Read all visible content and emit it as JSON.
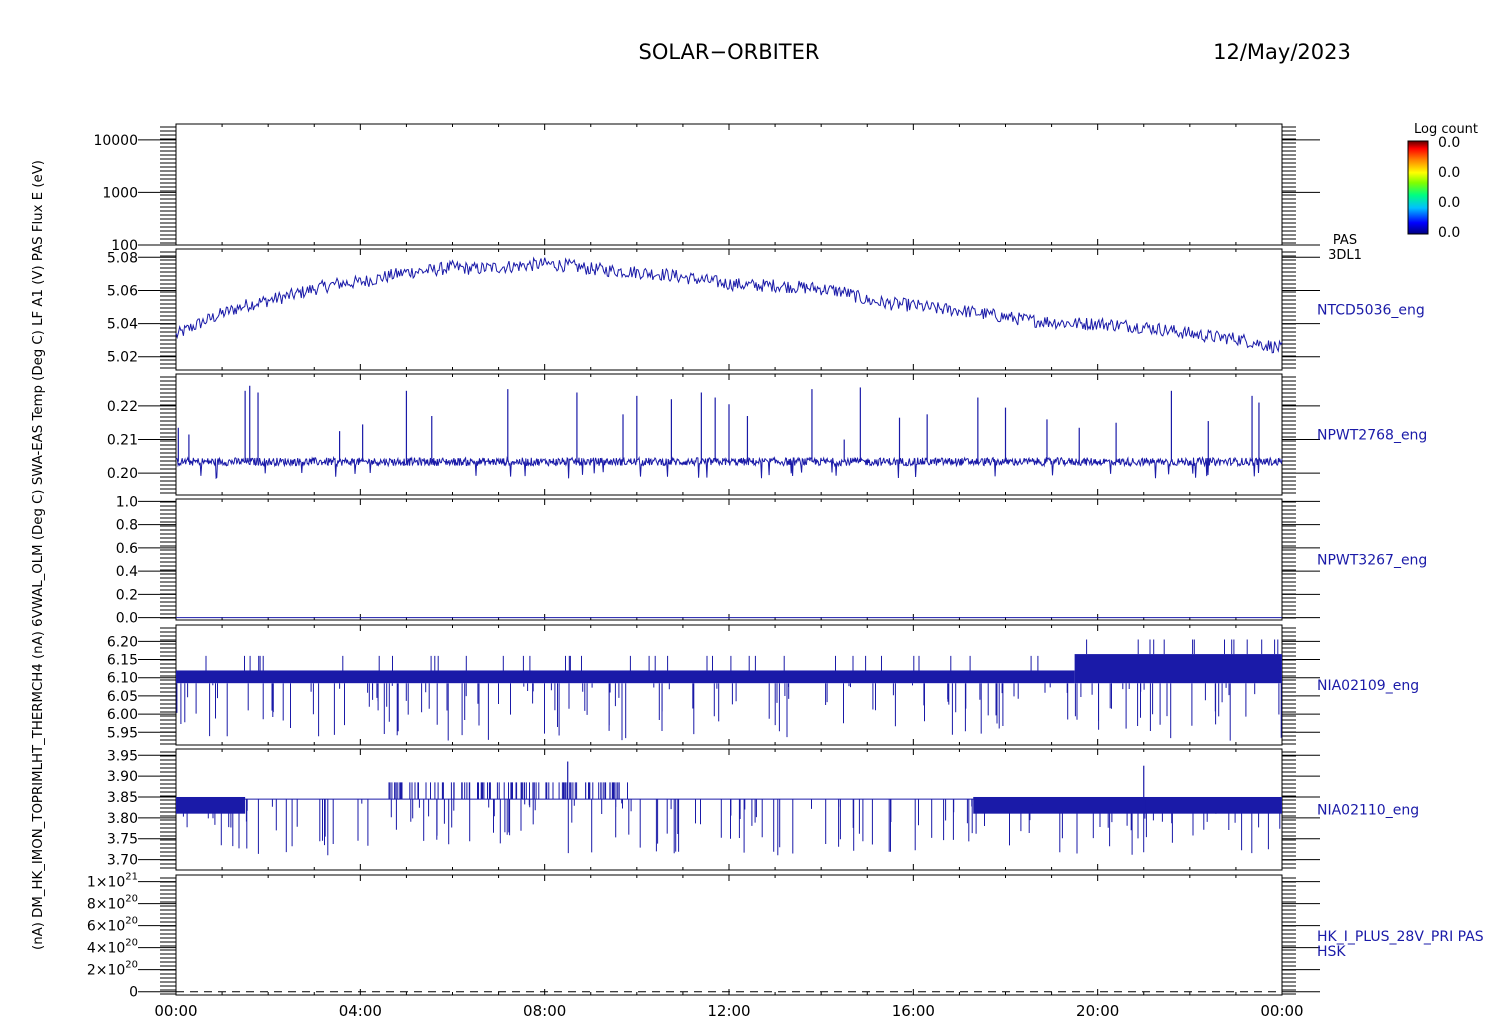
{
  "header": {
    "mission": "SOLAR−ORBITER",
    "date": "12/May/2023"
  },
  "colorbar": {
    "title": "Log count",
    "tick_labels": [
      "0.0",
      "0.0",
      "0.0",
      "0.0"
    ]
  },
  "left_axis_stacked_label": "(nA)  DM_HK_IMON_TOPRIMLHT_THERMCH4 (nA)  6VWAL_OLM (Deg C)  SWA-EAS Temp (Deg C)  LF A1 (V)  PAS Flux  E (eV)",
  "time_axis": {
    "tick_labels": [
      "00:00",
      "04:00",
      "08:00",
      "12:00",
      "16:00",
      "20:00",
      "00:00"
    ],
    "range_hours": [
      0,
      24
    ]
  },
  "colors": {
    "data": "#1a1aa8",
    "axes": "#000000",
    "colorbar_gradient": [
      "#000080",
      "#0000ff",
      "#00c0ff",
      "#00ff80",
      "#80ff00",
      "#ffff00",
      "#ff8000",
      "#ff0000",
      "#600000"
    ]
  },
  "chart_data": [
    {
      "type": "heatmap",
      "panel": "PAS 3DL1 energy spectrogram",
      "ylabel": "E (eV)",
      "yscale": "log",
      "ylim": [
        100,
        20000
      ],
      "ytick_labels": [
        "100",
        "1000",
        "10000"
      ],
      "right_labels": [
        "PAS",
        "3DL1"
      ],
      "values": []
    },
    {
      "type": "line",
      "series_name": "NTCD5036_eng",
      "ylim": [
        5.012,
        5.085
      ],
      "ytick_labels": [
        "5.02",
        "5.04",
        "5.06",
        "5.08"
      ],
      "x_hours": [
        0,
        0.5,
        1,
        1.5,
        2,
        2.5,
        3,
        3.5,
        4,
        4.5,
        5,
        5.5,
        6,
        6.5,
        7,
        7.5,
        8,
        8.5,
        9,
        9.5,
        10,
        10.5,
        11,
        11.5,
        12,
        12.5,
        13,
        13.5,
        14,
        14.5,
        15,
        15.5,
        16,
        16.5,
        17,
        17.5,
        18,
        18.5,
        19,
        19.5,
        20,
        20.5,
        21,
        21.5,
        22,
        22.5,
        23,
        23.5,
        24
      ],
      "y": [
        5.033,
        5.04,
        5.046,
        5.051,
        5.054,
        5.057,
        5.061,
        5.064,
        5.065,
        5.068,
        5.071,
        5.072,
        5.074,
        5.073,
        5.074,
        5.075,
        5.076,
        5.075,
        5.073,
        5.072,
        5.071,
        5.07,
        5.068,
        5.066,
        5.064,
        5.063,
        5.063,
        5.062,
        5.061,
        5.059,
        5.054,
        5.052,
        5.051,
        5.049,
        5.048,
        5.046,
        5.044,
        5.042,
        5.041,
        5.04,
        5.04,
        5.039,
        5.038,
        5.036,
        5.034,
        5.032,
        5.031,
        5.028,
        5.025
      ],
      "noise_amplitude": 0.004
    },
    {
      "type": "line",
      "series_name": "NPWT2768_eng",
      "ylim": [
        0.1935,
        0.2295
      ],
      "ytick_labels": [
        "0.20",
        "0.21",
        "0.22"
      ],
      "baseline": 0.2034,
      "noise_amplitude": 0.0012,
      "spikes": [
        {
          "t": 0.05,
          "v": 0.2135
        },
        {
          "t": 0.28,
          "v": 0.2115
        },
        {
          "t": 1.5,
          "v": 0.2245
        },
        {
          "t": 1.6,
          "v": 0.226
        },
        {
          "t": 1.78,
          "v": 0.224
        },
        {
          "t": 3.55,
          "v": 0.2125
        },
        {
          "t": 4.05,
          "v": 0.2145
        },
        {
          "t": 5.0,
          "v": 0.2245
        },
        {
          "t": 5.55,
          "v": 0.217
        },
        {
          "t": 7.2,
          "v": 0.225
        },
        {
          "t": 8.7,
          "v": 0.224
        },
        {
          "t": 9.7,
          "v": 0.2175
        },
        {
          "t": 10.0,
          "v": 0.223
        },
        {
          "t": 10.75,
          "v": 0.222
        },
        {
          "t": 11.4,
          "v": 0.224
        },
        {
          "t": 11.7,
          "v": 0.2225
        },
        {
          "t": 12.0,
          "v": 0.2205
        },
        {
          "t": 12.4,
          "v": 0.217
        },
        {
          "t": 13.8,
          "v": 0.225
        },
        {
          "t": 14.5,
          "v": 0.21
        },
        {
          "t": 14.85,
          "v": 0.2255
        },
        {
          "t": 15.7,
          "v": 0.2165
        },
        {
          "t": 16.3,
          "v": 0.2175
        },
        {
          "t": 17.4,
          "v": 0.2225
        },
        {
          "t": 18.0,
          "v": 0.2195
        },
        {
          "t": 18.9,
          "v": 0.216
        },
        {
          "t": 19.6,
          "v": 0.2135
        },
        {
          "t": 20.4,
          "v": 0.215
        },
        {
          "t": 21.6,
          "v": 0.2245
        },
        {
          "t": 22.4,
          "v": 0.2155
        },
        {
          "t": 23.35,
          "v": 0.223
        },
        {
          "t": 23.5,
          "v": 0.221
        }
      ]
    },
    {
      "type": "line",
      "series_name": "NPWT3267_eng",
      "ylim": [
        -0.02,
        1.02
      ],
      "ytick_labels": [
        "0.0",
        "0.2",
        "0.4",
        "0.6",
        "0.8",
        "1.0"
      ],
      "constant_value": 0.0
    },
    {
      "type": "line",
      "series_name": "NIA02109_eng",
      "ylim": [
        5.915,
        6.245
      ],
      "ytick_labels": [
        "5.95",
        "6.00",
        "6.05",
        "6.10",
        "6.15",
        "6.20"
      ],
      "segments": [
        {
          "t_start": 0,
          "t_end": 19.5,
          "low": 6.085,
          "high": 6.12
        },
        {
          "t_start": 19.5,
          "t_end": 24,
          "low": 6.085,
          "high": 6.165
        }
      ],
      "up_spikes_to": 6.16,
      "down_spikes_to": 5.93
    },
    {
      "type": "line",
      "series_name": "NIA02110_eng",
      "ylim": [
        3.675,
        3.965
      ],
      "ytick_labels": [
        "3.70",
        "3.75",
        "3.80",
        "3.85",
        "3.90",
        "3.95"
      ],
      "base_value": 3.845,
      "dense_band": [
        3.81,
        3.85
      ],
      "dense_intervals": [
        [
          0,
          1.5
        ],
        [
          17.3,
          24
        ]
      ],
      "up_spike_interval": [
        4.6,
        9.8
      ],
      "up_spikes_to": 3.885,
      "peaks": [
        {
          "t": 8.5,
          "v": 3.935
        },
        {
          "t": 21.0,
          "v": 3.925
        }
      ],
      "down_spikes_to": 3.72
    },
    {
      "type": "line",
      "series_name": "HK_I_PLUS_28V_PRI PAS",
      "extra_label": "HSK",
      "ylim": [
        -3e+19,
        1.06e+21
      ],
      "ytick_labels": [
        {
          "mant": "0",
          "exp": ""
        },
        {
          "mant": "2×10",
          "exp": "20"
        },
        {
          "mant": "4×10",
          "exp": "20"
        },
        {
          "mant": "6×10",
          "exp": "20"
        },
        {
          "mant": "8×10",
          "exp": "20"
        },
        {
          "mant": "1×10",
          "exp": "21"
        }
      ],
      "constant_value": 0,
      "line_style": "dashed"
    }
  ]
}
